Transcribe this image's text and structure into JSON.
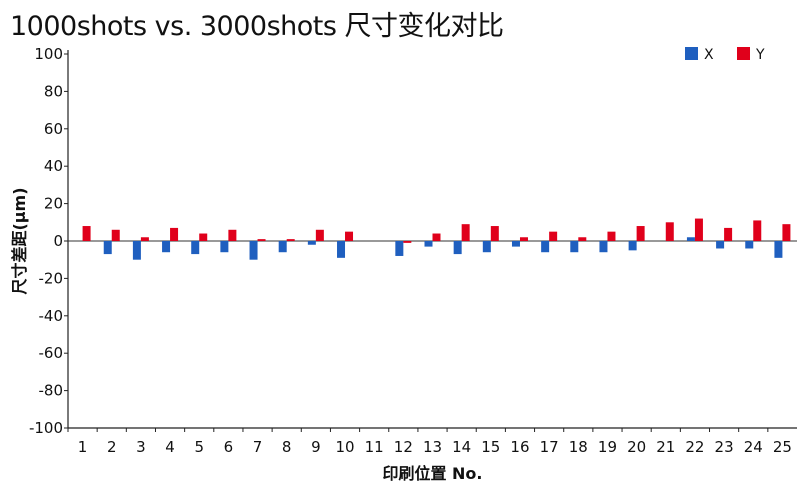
{
  "chart_data": {
    "type": "bar",
    "title": "1000shots vs. 3000shots 尺寸变化对比",
    "xlabel": "印刷位置 No.",
    "ylabel": "尺寸差距(μm)",
    "ylim": [
      -100,
      100
    ],
    "y_ticks": [
      100,
      80,
      60,
      40,
      20,
      0,
      -20,
      -40,
      -60,
      -80,
      -100
    ],
    "grid": false,
    "legend_position": "top-right",
    "categories": [
      "1",
      "2",
      "3",
      "4",
      "5",
      "6",
      "7",
      "8",
      "9",
      "10",
      "11",
      "12",
      "13",
      "14",
      "15",
      "16",
      "17",
      "18",
      "19",
      "20",
      "21",
      "22",
      "23",
      "24",
      "25"
    ],
    "series": [
      {
        "name": "X",
        "color": "#1f5fbf",
        "values": [
          0,
          -7,
          -10,
          -6,
          -7,
          -6,
          -10,
          -6,
          -2,
          -9,
          0,
          -8,
          -3,
          -7,
          -6,
          -3,
          -6,
          -6,
          -6,
          -5,
          0,
          2,
          -4,
          -4,
          -9
        ]
      },
      {
        "name": "Y",
        "color": "#e0001b",
        "values": [
          8,
          6,
          2,
          7,
          4,
          6,
          1,
          1,
          6,
          5,
          0,
          -1,
          4,
          9,
          8,
          2,
          5,
          2,
          5,
          8,
          10,
          12,
          7,
          11,
          9
        ]
      }
    ]
  }
}
